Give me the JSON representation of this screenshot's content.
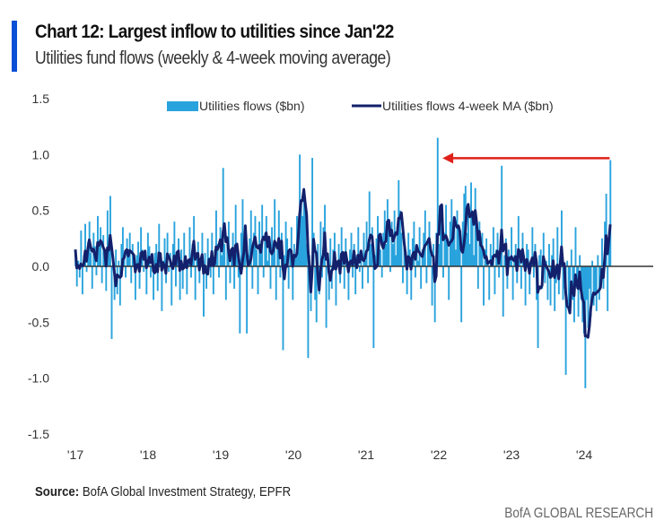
{
  "header": {
    "title": "Chart 12: Largest inflow to utilities since Jan'22",
    "subtitle": "Utilities fund flows (weekly & 4-week moving average)"
  },
  "footer": {
    "source_label": "Source:",
    "source_text": "BofA Global Investment Strategy, EPFR",
    "brand": "BofA GLOBAL RESEARCH"
  },
  "colors": {
    "accent": "#0a4fd6",
    "flows": "#29a3dd",
    "ma": "#13206b",
    "arrow": "#e0201b",
    "zero_line": "#333333"
  },
  "chart_data": {
    "type": "bar",
    "title": "Chart 12: Largest inflow to utilities since Jan'22",
    "subtitle": "Utilities fund flows (weekly & 4-week moving average)",
    "xlabel": "",
    "ylabel": "",
    "ylim": [
      -1.5,
      1.5
    ],
    "yticks": [
      "1.5",
      "1.0",
      "0.5",
      "0.0",
      "-0.5",
      "-1.0",
      "-1.5"
    ],
    "xlim": [
      2017,
      2024.95
    ],
    "xticks": [
      {
        "label": "'17",
        "value": 2017
      },
      {
        "label": "'18",
        "value": 2018
      },
      {
        "label": "'19",
        "value": 2019
      },
      {
        "label": "'20",
        "value": 2020
      },
      {
        "label": "'21",
        "value": 2021
      },
      {
        "label": "'22",
        "value": 2022
      },
      {
        "label": "'23",
        "value": 2023
      },
      {
        "label": "'24",
        "value": 2024
      }
    ],
    "grid": false,
    "legend_position": "top-center",
    "x_start": 2017,
    "frequency": "weekly",
    "series": [
      {
        "name": "Utilities flows ($bn)",
        "kind": "bar",
        "values": [
          0.15,
          -0.18,
          0.05,
          -0.1,
          0.32,
          -0.25,
          0.1,
          0.38,
          -0.05,
          0.22,
          0.4,
          0.12,
          -0.2,
          0.3,
          0.18,
          -0.08,
          0.45,
          0.2,
          0.35,
          -0.15,
          0.28,
          0.1,
          -0.22,
          0.5,
          0.2,
          0.63,
          -0.65,
          0.1,
          -0.3,
          0.15,
          -0.25,
          0.05,
          -0.35,
          0.2,
          0.35,
          0.1,
          -0.1,
          0.25,
          0.12,
          0.3,
          -0.15,
          0.2,
          0.05,
          -0.3,
          0.1,
          0.22,
          -0.2,
          0.35,
          0.15,
          -0.05,
          0.1,
          -0.25,
          0.3,
          0.18,
          -0.1,
          0.05,
          -0.3,
          0.12,
          0.2,
          -0.22,
          0.38,
          0.1,
          -0.4,
          0.05,
          0.25,
          -0.15,
          0.3,
          -0.05,
          0.12,
          -0.35,
          0.2,
          0.4,
          -0.18,
          0.08,
          0.25,
          -0.3,
          0.15,
          -0.2,
          0.3,
          0.1,
          -0.25,
          0.05,
          0.35,
          -0.1,
          0.2,
          0.45,
          -0.3,
          0.1,
          0.22,
          -0.15,
          0.05,
          0.3,
          -0.45,
          0.12,
          -0.2,
          0.25,
          0.08,
          -0.1,
          0.3,
          -0.25,
          0.15,
          0.5,
          0.2,
          -0.1,
          0.35,
          0.1,
          0.88,
          0.2,
          -0.3,
          0.25,
          0.4,
          -0.15,
          0.1,
          0.3,
          -0.2,
          0.55,
          0.15,
          -0.1,
          -0.6,
          0.3,
          0.6,
          0.2,
          0.35,
          -0.6,
          0.1,
          0.25,
          0.5,
          -0.2,
          0.3,
          0.45,
          0.15,
          -0.25,
          0.4,
          0.2,
          0.55,
          -0.1,
          0.3,
          0.45,
          0.05,
          0.25,
          -0.2,
          0.35,
          0.15,
          0.6,
          -0.3,
          0.2,
          0.5,
          -0.1,
          0.3,
          -0.75,
          0.1,
          0.4,
          0.25,
          -0.2,
          0.15,
          0.35,
          -0.3,
          0.2,
          0.1,
          0.45,
          0.3,
          1.0,
          0.6,
          0.45,
          0.7,
          0.5,
          0.2,
          -0.82,
          0.1,
          -0.4,
          0.97,
          0.3,
          -0.3,
          -0.5,
          0.2,
          -0.25,
          0.4,
          -0.1,
          0.35,
          0.55,
          -0.55,
          0.1,
          -0.3,
          0.25,
          -0.2,
          0.15,
          0.3,
          -0.35,
          0.05,
          0.2,
          -0.15,
          0.35,
          0.1,
          -0.2,
          0.25,
          0.05,
          -0.3,
          0.15,
          0.3,
          -0.1,
          0.2,
          -0.25,
          0.1,
          0.35,
          -0.05,
          0.15,
          -0.2,
          0.3,
          0.05,
          0.4,
          -0.15,
          0.67,
          0.2,
          0.35,
          -0.73,
          0.1,
          0.25,
          0.45,
          0.3,
          0.15,
          -0.1,
          0.3,
          0.5,
          0.2,
          0.6,
          0.35,
          -0.05,
          0.4,
          0.2,
          0.5,
          0.1,
          0.35,
          0.77,
          0.5,
          0.3,
          -0.15,
          0.2,
          0.1,
          -0.25,
          0.3,
          0.15,
          -0.3,
          0.25,
          0.4,
          -0.1,
          0.2,
          0.05,
          0.35,
          -0.2,
          0.15,
          0.3,
          0.5,
          -0.15,
          0.25,
          0.4,
          0.1,
          -0.35,
          0.2,
          -0.5,
          0.3,
          1.15,
          0.2,
          0.5,
          0.35,
          -0.1,
          0.3,
          0.55,
          0.2,
          -0.3,
          0.4,
          0.6,
          0.3,
          0.45,
          0.15,
          0.5,
          0.35,
          0.25,
          -0.5,
          0.4,
          0.65,
          0.72,
          0.3,
          0.55,
          0.2,
          0.75,
          0.45,
          0.1,
          0.7,
          0.35,
          -0.2,
          0.4,
          0.2,
          0.3,
          -0.35,
          0.15,
          0.25,
          0.05,
          -0.3,
          0.2,
          0.1,
          0.35,
          -0.25,
          0.15,
          0.3,
          -0.1,
          0.2,
          0.9,
          -0.45,
          0.1,
          0.25,
          -0.2,
          0.15,
          0.05,
          0.35,
          -0.3,
          0.1,
          0.2,
          -0.15,
          0.45,
          0.05,
          -0.2,
          0.3,
          0.1,
          -0.35,
          0.2,
          0.15,
          -0.25,
          0.05,
          0.35,
          -0.1,
          0.2,
          -0.3,
          -0.73,
          0.1,
          0.15,
          -0.2,
          0.3,
          -0.15,
          0.05,
          -0.3,
          0.2,
          -0.35,
          0.1,
          0.25,
          -0.4,
          -0.15,
          0.35,
          -0.25,
          0.1,
          0.5,
          -0.3,
          -0.2,
          -0.97,
          0.05,
          -0.35,
          -0.4,
          0.15,
          -0.3,
          -0.5,
          0.35,
          -0.2,
          -0.45,
          0.1,
          -0.3,
          -0.5,
          -0.6,
          -1.09,
          -0.3,
          -0.55,
          -0.2,
          -0.45,
          0.05,
          -0.35,
          -0.25,
          -0.4,
          0.1,
          -0.3,
          -0.15,
          0.25,
          -0.2,
          0.4,
          0.65,
          -0.4,
          0.3,
          0.95
        ]
      },
      {
        "name": "Utilities flows 4-week MA ($bn)",
        "kind": "line",
        "window": 4
      }
    ],
    "annotations": [
      {
        "type": "arrow",
        "from": [
          2024.35,
          1.0
        ],
        "to": [
          2022.05,
          1.0
        ]
      }
    ]
  }
}
